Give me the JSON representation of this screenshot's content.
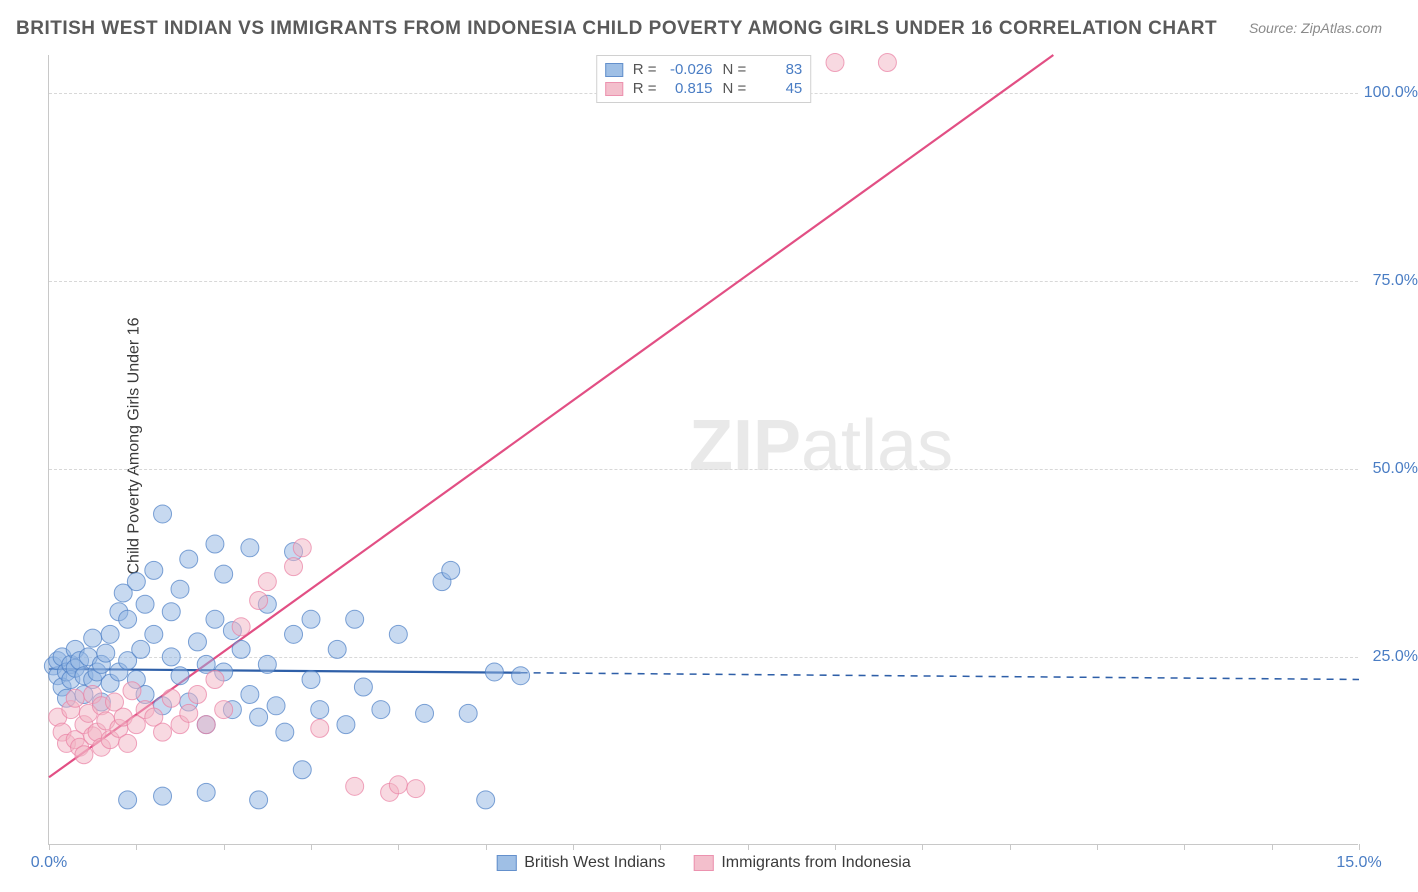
{
  "title": "BRITISH WEST INDIAN VS IMMIGRANTS FROM INDONESIA CHILD POVERTY AMONG GIRLS UNDER 16 CORRELATION CHART",
  "source": "Source: ZipAtlas.com",
  "ylabel": "Child Poverty Among Girls Under 16",
  "watermark_bold": "ZIP",
  "watermark_rest": "atlas",
  "chart": {
    "type": "scatter",
    "background_color": "#ffffff",
    "grid_color": "#d8d8d8",
    "axis_color": "#c8c8c8",
    "tick_label_color": "#4a7dc4",
    "label_fontsize": 16,
    "title_fontsize": 19,
    "xlim": [
      0,
      15
    ],
    "ylim": [
      0,
      105
    ],
    "yticks": [
      25,
      50,
      75,
      100
    ],
    "ytick_labels": [
      "25.0%",
      "50.0%",
      "75.0%",
      "100.0%"
    ],
    "xticks": [
      0,
      5,
      10,
      15
    ],
    "xtick_labels": [
      "0.0%",
      "",
      "",
      "15.0%"
    ],
    "xtick_minor_step": 1.0,
    "marker_radius": 9,
    "marker_opacity": 0.5,
    "line_width": 2.2,
    "series": [
      {
        "name": "British West Indians",
        "color_fill": "#8fb4e1",
        "color_stroke": "#4a7dc4",
        "line_color": "#2e5fa8",
        "R": "-0.026",
        "N": "83",
        "trend": {
          "x1": 0,
          "y1": 23.4,
          "x2": 15,
          "y2": 22.0,
          "solid_until_x": 5.4
        },
        "points": [
          [
            0.05,
            23.8
          ],
          [
            0.1,
            22.5
          ],
          [
            0.1,
            24.5
          ],
          [
            0.15,
            21.0
          ],
          [
            0.15,
            25.0
          ],
          [
            0.2,
            23.0
          ],
          [
            0.2,
            19.5
          ],
          [
            0.25,
            24.0
          ],
          [
            0.25,
            22.0
          ],
          [
            0.3,
            23.5
          ],
          [
            0.3,
            26.0
          ],
          [
            0.35,
            24.5
          ],
          [
            0.4,
            22.5
          ],
          [
            0.4,
            20.0
          ],
          [
            0.45,
            25.0
          ],
          [
            0.5,
            22.0
          ],
          [
            0.5,
            27.5
          ],
          [
            0.55,
            23.0
          ],
          [
            0.6,
            24.0
          ],
          [
            0.6,
            19.0
          ],
          [
            0.65,
            25.5
          ],
          [
            0.7,
            21.5
          ],
          [
            0.7,
            28.0
          ],
          [
            0.8,
            23.0
          ],
          [
            0.8,
            31.0
          ],
          [
            0.85,
            33.5
          ],
          [
            0.9,
            24.5
          ],
          [
            0.9,
            30.0
          ],
          [
            1.0,
            22.0
          ],
          [
            1.0,
            35.0
          ],
          [
            1.05,
            26.0
          ],
          [
            1.1,
            20.0
          ],
          [
            1.1,
            32.0
          ],
          [
            1.2,
            28.0
          ],
          [
            1.2,
            36.5
          ],
          [
            1.3,
            18.5
          ],
          [
            1.3,
            44.0
          ],
          [
            1.4,
            25.0
          ],
          [
            1.4,
            31.0
          ],
          [
            1.5,
            22.5
          ],
          [
            1.5,
            34.0
          ],
          [
            1.6,
            19.0
          ],
          [
            1.6,
            38.0
          ],
          [
            1.7,
            27.0
          ],
          [
            1.8,
            24.0
          ],
          [
            1.8,
            16.0
          ],
          [
            1.9,
            30.0
          ],
          [
            1.9,
            40.0
          ],
          [
            2.0,
            23.0
          ],
          [
            2.0,
            36.0
          ],
          [
            2.1,
            18.0
          ],
          [
            2.1,
            28.5
          ],
          [
            2.2,
            26.0
          ],
          [
            2.3,
            20.0
          ],
          [
            2.3,
            39.5
          ],
          [
            2.4,
            17.0
          ],
          [
            2.5,
            24.0
          ],
          [
            2.5,
            32.0
          ],
          [
            2.6,
            18.5
          ],
          [
            2.7,
            15.0
          ],
          [
            2.8,
            28.0
          ],
          [
            2.8,
            39.0
          ],
          [
            2.9,
            10.0
          ],
          [
            3.0,
            22.0
          ],
          [
            3.0,
            30.0
          ],
          [
            3.1,
            18.0
          ],
          [
            3.3,
            26.0
          ],
          [
            3.4,
            16.0
          ],
          [
            3.5,
            30.0
          ],
          [
            3.6,
            21.0
          ],
          [
            3.8,
            18.0
          ],
          [
            4.0,
            28.0
          ],
          [
            4.3,
            17.5
          ],
          [
            4.5,
            35.0
          ],
          [
            4.6,
            36.5
          ],
          [
            4.8,
            17.5
          ],
          [
            5.0,
            6.0
          ],
          [
            5.1,
            23.0
          ],
          [
            5.4,
            22.5
          ],
          [
            0.9,
            6.0
          ],
          [
            1.3,
            6.5
          ],
          [
            1.8,
            7.0
          ],
          [
            2.4,
            6.0
          ]
        ]
      },
      {
        "name": "Immigrants from Indonesia",
        "color_fill": "#f2b4c4",
        "color_stroke": "#e97fa2",
        "line_color": "#e24f84",
        "R": "0.815",
        "N": "45",
        "trend": {
          "x1": 0,
          "y1": 9.0,
          "x2": 11.5,
          "y2": 105.0,
          "solid_until_x": 11.5
        },
        "points": [
          [
            0.1,
            17.0
          ],
          [
            0.15,
            15.0
          ],
          [
            0.2,
            13.5
          ],
          [
            0.25,
            18.0
          ],
          [
            0.3,
            14.0
          ],
          [
            0.3,
            19.5
          ],
          [
            0.35,
            13.0
          ],
          [
            0.4,
            16.0
          ],
          [
            0.4,
            12.0
          ],
          [
            0.45,
            17.5
          ],
          [
            0.5,
            14.5
          ],
          [
            0.5,
            20.0
          ],
          [
            0.55,
            15.0
          ],
          [
            0.6,
            18.5
          ],
          [
            0.6,
            13.0
          ],
          [
            0.65,
            16.5
          ],
          [
            0.7,
            14.0
          ],
          [
            0.75,
            19.0
          ],
          [
            0.8,
            15.5
          ],
          [
            0.85,
            17.0
          ],
          [
            0.9,
            13.5
          ],
          [
            0.95,
            20.5
          ],
          [
            1.0,
            16.0
          ],
          [
            1.1,
            18.0
          ],
          [
            1.2,
            17.0
          ],
          [
            1.3,
            15.0
          ],
          [
            1.4,
            19.5
          ],
          [
            1.5,
            16.0
          ],
          [
            1.6,
            17.5
          ],
          [
            1.7,
            20.0
          ],
          [
            1.8,
            16.0
          ],
          [
            1.9,
            22.0
          ],
          [
            2.0,
            18.0
          ],
          [
            2.2,
            29.0
          ],
          [
            2.4,
            32.5
          ],
          [
            2.5,
            35.0
          ],
          [
            2.8,
            37.0
          ],
          [
            2.9,
            39.5
          ],
          [
            3.1,
            15.5
          ],
          [
            3.5,
            7.8
          ],
          [
            3.9,
            7.0
          ],
          [
            4.0,
            8.0
          ],
          [
            4.2,
            7.5
          ],
          [
            9.0,
            104.0
          ],
          [
            9.6,
            104.0
          ]
        ]
      }
    ]
  },
  "stats_legend": {
    "r_label": "R =",
    "n_label": "N ="
  },
  "bottom_legend": {
    "series1": "British West Indians",
    "series2": "Immigrants from Indonesia"
  }
}
